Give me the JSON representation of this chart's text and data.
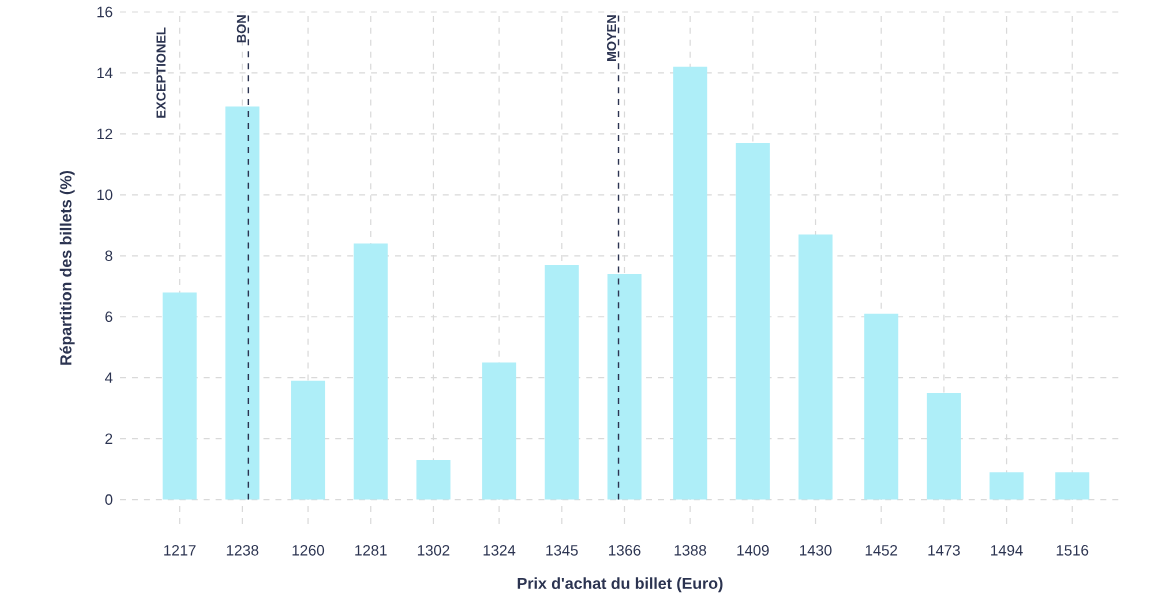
{
  "chart_data": {
    "type": "bar",
    "xlabel": "Prix d'achat du billet (Euro)",
    "ylabel": "Répartition des billets (%)",
    "x": [
      1217,
      1238,
      1260,
      1281,
      1302,
      1324,
      1345,
      1366,
      1388,
      1409,
      1430,
      1452,
      1473,
      1494,
      1516
    ],
    "values": [
      6.8,
      12.9,
      3.9,
      8.4,
      1.3,
      4.5,
      7.7,
      7.4,
      14.2,
      11.7,
      8.7,
      6.1,
      3.5,
      0.9,
      0.9
    ],
    "color": "#aeeef8",
    "xlim": [
      1197,
      1532
    ],
    "xticks": [
      1217,
      1238,
      1260,
      1281,
      1302,
      1324,
      1345,
      1366,
      1388,
      1409,
      1430,
      1452,
      1473,
      1494,
      1516
    ],
    "ylim": [
      -0.8,
      16
    ],
    "yticks": [
      0,
      2,
      4,
      6,
      8,
      10,
      12,
      14,
      16
    ],
    "grid": true,
    "ref_lines": [
      {
        "axis": "x",
        "value": 1240,
        "label": "BON",
        "color": "#2b3350",
        "line_style": "dashed"
      },
      {
        "axis": "x",
        "value": 1364,
        "label": "MOYEN",
        "color": "#2b3350",
        "line_style": "dashed"
      }
    ],
    "annotations": [
      "EXCEPTIONEL"
    ]
  }
}
